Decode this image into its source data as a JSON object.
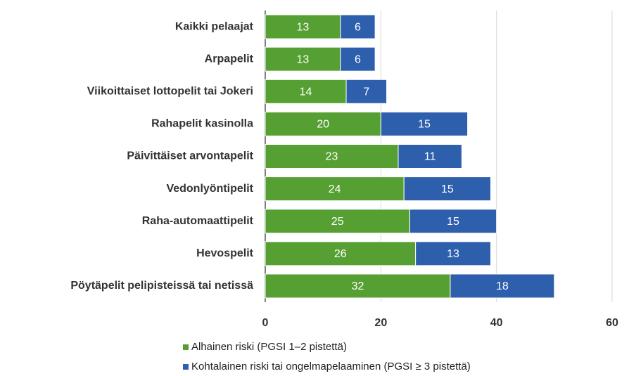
{
  "chart_data": {
    "type": "bar",
    "orientation": "horizontal",
    "stacked": true,
    "categories": [
      "Kaikki pelaajat",
      "Arpapelit",
      "Viikoittaiset lottopelit tai Jokeri",
      "Rahapelit kasinolla",
      "Päivittäiset arvontapelit",
      "Vedonlyöntipelit",
      "Raha-automaattipelit",
      "Hevospelit",
      "Pöytäpelit pelipisteissä tai netissä"
    ],
    "series": [
      {
        "name": "Alhainen riski (PGSI 1–2 pistettä)",
        "color": "#56a033",
        "values": [
          13,
          13,
          14,
          20,
          23,
          24,
          25,
          26,
          32
        ]
      },
      {
        "name": "Kohtalainen riski tai ongelmapelaaminen (PGSI ≥ 3 pistettä)",
        "color": "#2e5fac",
        "values": [
          6,
          6,
          7,
          15,
          11,
          15,
          15,
          13,
          18
        ]
      }
    ],
    "xlim": [
      0,
      60
    ],
    "xticks": [
      0,
      20,
      40,
      60
    ],
    "grid": true,
    "legend": "bottom"
  }
}
